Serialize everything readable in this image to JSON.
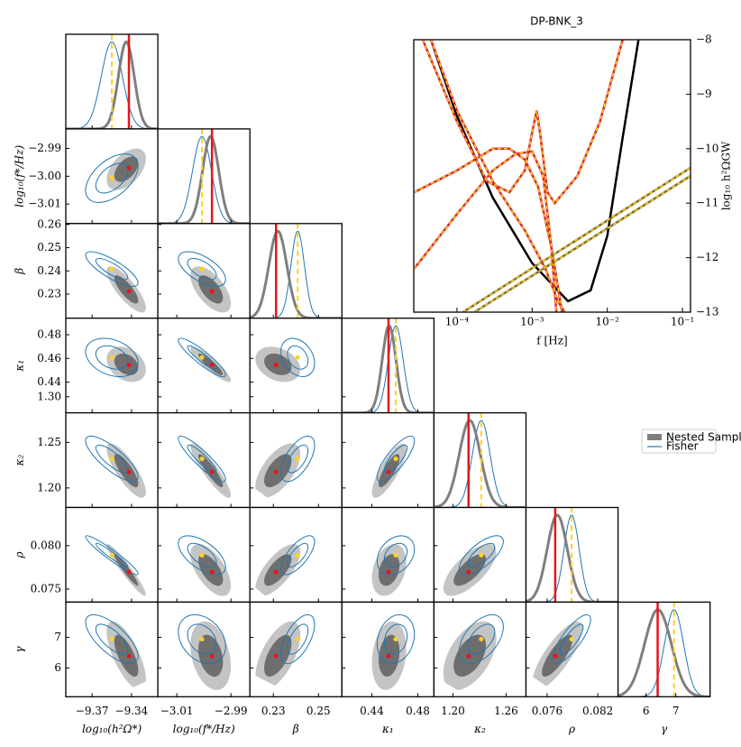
{
  "chart_data": [
    {
      "type": "corner",
      "truth_color": "#e8141c",
      "fisher_mean_color": "#ffd21f",
      "fisher_color": "#1f77b4",
      "nested_colors": [
        "#6e6e6e",
        "#c4c4c4"
      ],
      "legend": [
        {
          "name": "Nested Sampling",
          "color": "#7f7f7f"
        },
        {
          "name": "Fisher",
          "color": "#1f77b4"
        }
      ],
      "parameters": [
        {
          "label": "log₁₀(h²Ω*)",
          "lim": [
            -9.39,
            -9.32
          ],
          "xticks": [
            {
              "value": -9.37,
              "label": "−9.37"
            },
            {
              "value": -9.34,
              "label": "−9.34"
            }
          ],
          "truth": -9.342,
          "fisher_mean": -9.355,
          "fisher_sd": 0.008,
          "nested_mean": -9.344,
          "nested_sd": 0.006
        },
        {
          "label": "log₁₀(f*/Hz)",
          "lim": [
            -3.017,
            -2.983
          ],
          "xticks": [
            {
              "value": -3.01,
              "label": "−3.01"
            },
            {
              "value": -2.99,
              "label": "−2.99"
            }
          ],
          "yticks": [
            {
              "value": -2.99,
              "label": "−2.99"
            },
            {
              "value": -3.0,
              "label": "−3.00"
            },
            {
              "value": -3.01,
              "label": "−3.01"
            }
          ],
          "truth": -2.997,
          "fisher_mean": -3.0007,
          "fisher_sd": 0.0035,
          "nested_mean": -2.9975,
          "nested_sd": 0.003
        },
        {
          "label": "β",
          "lim": [
            0.2196,
            0.2604
          ],
          "xticks": [
            0.23,
            0.25
          ],
          "yticks": [
            0.26,
            0.25,
            0.24,
            0.23
          ],
          "truth": 0.2312,
          "fisher_mean": 0.2408,
          "fisher_sd": 0.003,
          "nested_mean": 0.232,
          "nested_sd": 0.004
        },
        {
          "label": "κ₁",
          "lim": [
            0.414,
            0.494
          ],
          "xticks": [
            0.44,
            0.48
          ],
          "yticks": [
            0.48,
            0.46,
            0.44
          ],
          "truth": 0.4545,
          "fisher_mean": 0.4608,
          "fisher_sd": 0.0065,
          "nested_mean": 0.455,
          "nested_sd": 0.006
        },
        {
          "label": "κ₂",
          "lim": [
            1.1786,
            1.2824
          ],
          "xticks": [
            {
              "value": 1.2,
              "label": "1.20"
            },
            1.26
          ],
          "yticks": [
            {
              "value": 1.3,
              "label": "1.30"
            },
            1.25,
            {
              "value": 1.2,
              "label": "1.20"
            }
          ],
          "truth": 1.2176,
          "fisher_mean": 1.2319,
          "fisher_sd": 0.01,
          "nested_mean": 1.219,
          "nested_sd": 0.012
        },
        {
          "label": "ρ",
          "lim": [
            0.0735,
            0.0844
          ],
          "xticks": [
            0.076,
            0.082
          ],
          "yticks": [
            {
              "value": 0.08,
              "label": "0.080"
            },
            0.075
          ],
          "truth": 0.07696,
          "fisher_mean": 0.0789,
          "fisher_sd": 0.0009,
          "nested_mean": 0.0772,
          "nested_sd": 0.0012
        },
        {
          "label": "γ",
          "lim": [
            5.06,
            8.15
          ],
          "xticks": [
            6,
            7
          ],
          "yticks": [
            7,
            6
          ],
          "truth": 6.39,
          "fisher_mean": 6.94,
          "fisher_sd": 0.32,
          "nested_mean": 6.4,
          "nested_sd": 0.45
        }
      ],
      "correlations": [
        0.5,
        -0.8,
        -0.6,
        -0.3,
        -0.9,
        -0.3,
        -0.8,
        -0.9,
        0.6,
        0.8,
        -0.95,
        -0.6,
        0.7,
        0.3,
        0.7,
        -0.7,
        -0.3,
        0.6,
        0.2,
        0.5,
        0.8
      ]
    },
    {
      "type": "line",
      "title": "DP-BNK_3",
      "xlabel": "f [Hz]",
      "ylabel": "log₁₀ h²ΩGW",
      "xlog": true,
      "xlim": [
        2.66e-05,
        0.128
      ],
      "ylim": [
        -13,
        -8
      ],
      "xticks": [
        {
          "value": 0.0001,
          "label": "10⁻⁴"
        },
        {
          "value": 0.001,
          "label": "10⁻³"
        },
        {
          "value": 0.01,
          "label": "10⁻²"
        },
        {
          "value": 0.1,
          "label": "10⁻¹"
        }
      ],
      "yticks": [
        {
          "value": -8,
          "label": "−8"
        },
        {
          "value": -9,
          "label": "−9"
        },
        {
          "value": -10,
          "label": "−10"
        },
        {
          "value": -11,
          "label": "−11"
        },
        {
          "value": -12,
          "label": "−12"
        },
        {
          "value": -13,
          "label": "−13"
        }
      ],
      "dash_color": "#ffd21f",
      "series": [
        {
          "color": "#000000",
          "dashed": false,
          "x": [
            4.5e-05,
            0.0001,
            0.0003,
            0.001,
            0.003,
            0.006,
            0.01,
            0.016,
            0.026
          ],
          "values": [
            -8,
            -9.4,
            -10.9,
            -12.1,
            -12.8,
            -12.6,
            -11.6,
            -9.8,
            -8
          ]
        },
        {
          "color": "#d62728",
          "dashed": true,
          "x": [
            2.7e-05,
            0.0001,
            0.0003,
            0.0005,
            0.0008,
            0.0012,
            0.0018,
            0.0025
          ],
          "values": [
            -10.8,
            -10.4,
            -10.0,
            -10.0,
            -10.2,
            -10.7,
            -11.8,
            -13
          ]
        },
        {
          "color": "#d62728",
          "dashed": true,
          "x": [
            2.7e-05,
            0.0001,
            0.0003,
            0.0006,
            0.001,
            0.0014,
            0.0018,
            0.0021
          ],
          "values": [
            -12.2,
            -11.2,
            -10.4,
            -10.1,
            -10.05,
            -10.5,
            -11.8,
            -13
          ]
        },
        {
          "color": "#d62728",
          "dashed": true,
          "x": [
            3.5e-05,
            0.0001,
            0.00025,
            0.0005,
            0.0008,
            0.001,
            0.00115,
            0.0013,
            0.0016,
            0.002,
            0.004,
            0.008,
            0.016
          ],
          "values": [
            -8,
            -9.5,
            -10.6,
            -10.8,
            -10.4,
            -9.7,
            -9.3,
            -9.8,
            -10.8,
            -11.0,
            -10.5,
            -9.5,
            -8
          ]
        },
        {
          "color": "#d62728",
          "dashed": true,
          "x": [
            4.5e-05,
            0.0001,
            0.0003,
            0.0008,
            0.0015,
            0.0022,
            0.0027
          ],
          "values": [
            -8,
            -9.3,
            -10.6,
            -11.5,
            -12.2,
            -12.8,
            -13
          ]
        },
        {
          "color": "#7a6a2a",
          "dashed": true,
          "x": [
            0.00012,
            0.128
          ],
          "values": [
            -13,
            -10.35
          ]
        },
        {
          "color": "#7a6a2a",
          "dashed": true,
          "x": [
            0.00017,
            0.128
          ],
          "values": [
            -13,
            -10.5
          ]
        }
      ]
    }
  ]
}
